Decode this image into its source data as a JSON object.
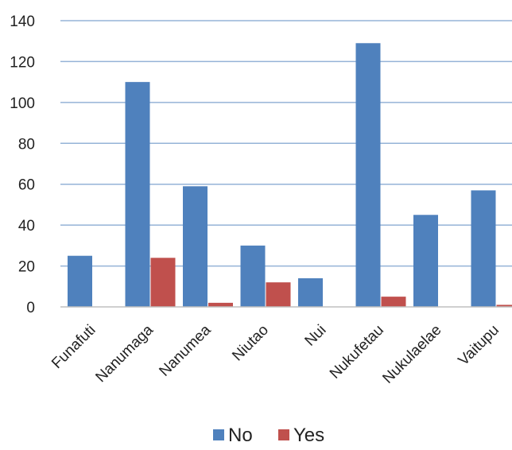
{
  "chart_data": {
    "type": "bar",
    "categories": [
      "Funafuti",
      "Nanumaga",
      "Nanumea",
      "Niutao",
      "Nui",
      "Nukufetau",
      "Nukulaelae",
      "Vaitupu"
    ],
    "series": [
      {
        "name": "No",
        "values": [
          25,
          110,
          59,
          30,
          14,
          129,
          45,
          57
        ],
        "color": "#4f81bd"
      },
      {
        "name": "Yes",
        "values": [
          0,
          24,
          2,
          12,
          0,
          5,
          0,
          1
        ],
        "color": "#c0504d"
      }
    ],
    "y_ticks": [
      "0",
      "20",
      "40",
      "60",
      "80",
      "100",
      "120",
      "140"
    ],
    "ylim": [
      0,
      140
    ],
    "grid": true,
    "legend_position": "bottom",
    "gridline_color": "#95b3d7"
  }
}
